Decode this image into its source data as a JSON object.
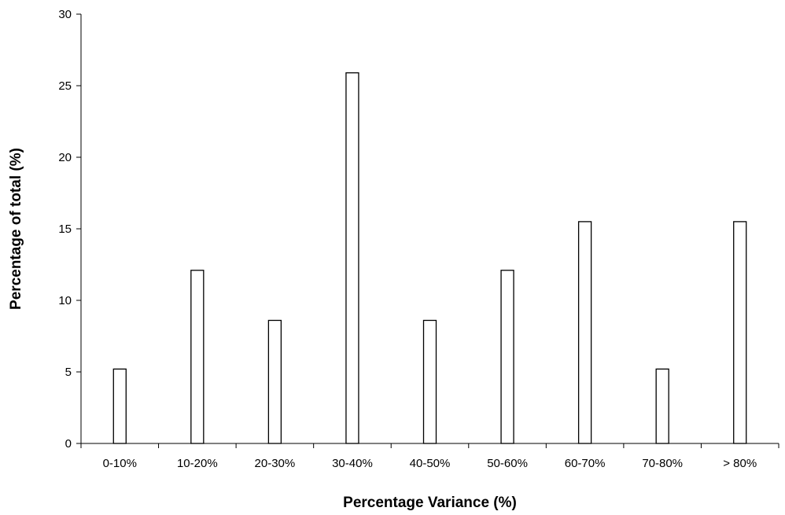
{
  "chart_data": {
    "type": "bar",
    "categories": [
      "0-10%",
      "10-20%",
      "20-30%",
      "30-40%",
      "40-50%",
      "50-60%",
      "60-70%",
      "70-80%",
      "> 80%"
    ],
    "values": [
      5.2,
      12.1,
      8.6,
      25.9,
      8.6,
      12.1,
      15.5,
      5.2,
      15.5
    ],
    "title": "",
    "xlabel": "Percentage Variance (%)",
    "ylabel": "Percentage of total (%)",
    "ylim": [
      0,
      30
    ],
    "yticks": [
      0,
      5,
      10,
      15,
      20,
      25,
      30
    ],
    "grid": false,
    "legend": "none",
    "bar_fill": "#ffffff",
    "bar_stroke": "#000000"
  }
}
